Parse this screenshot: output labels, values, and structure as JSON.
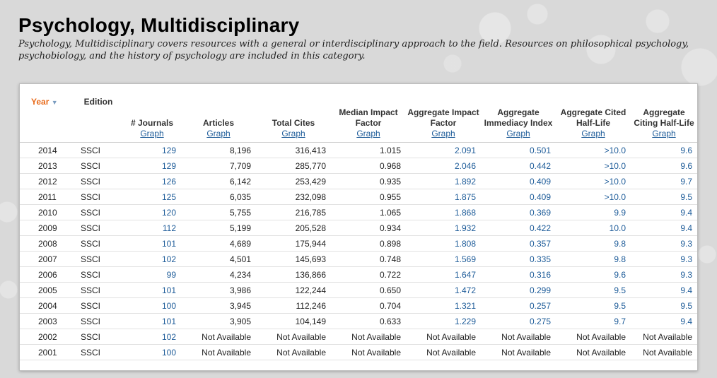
{
  "page": {
    "title": "Psychology, Multidisciplinary",
    "description": "Psychology, Multidisciplinary covers resources with a general or interdisciplinary approach to the field. Resources on philosophical psychology, psychobiology, and the history of psychology are included in this category."
  },
  "table": {
    "headers": {
      "year": "Year",
      "edition": "Edition",
      "journals": "# Journals",
      "articles": "Articles",
      "total_cites": "Total Cites",
      "median_if": "Median Impact Factor",
      "agg_if": "Aggregate Impact Factor",
      "agg_immediacy": "Aggregate Immediacy Index",
      "agg_cited_hl": "Aggregate Cited Half-Life",
      "agg_citing_hl": "Aggregate Citing Half-Life",
      "graph_label": "Graph"
    },
    "sort_icon": "sort-descending-icon",
    "link_color": "#1e5c99",
    "sort_color": "#e86a1a",
    "rows": [
      {
        "year": "2014",
        "edition": "SSCI",
        "journals": "129",
        "articles": "8,196",
        "total_cites": "316,413",
        "median_if": "1.015",
        "agg_if": "2.091",
        "agg_immediacy": "0.501",
        "agg_cited_hl": ">10.0",
        "agg_citing_hl": "9.6"
      },
      {
        "year": "2013",
        "edition": "SSCI",
        "journals": "129",
        "articles": "7,709",
        "total_cites": "285,770",
        "median_if": "0.968",
        "agg_if": "2.046",
        "agg_immediacy": "0.442",
        "agg_cited_hl": ">10.0",
        "agg_citing_hl": "9.6"
      },
      {
        "year": "2012",
        "edition": "SSCI",
        "journals": "126",
        "articles": "6,142",
        "total_cites": "253,429",
        "median_if": "0.935",
        "agg_if": "1.892",
        "agg_immediacy": "0.409",
        "agg_cited_hl": ">10.0",
        "agg_citing_hl": "9.7"
      },
      {
        "year": "2011",
        "edition": "SSCI",
        "journals": "125",
        "articles": "6,035",
        "total_cites": "232,098",
        "median_if": "0.955",
        "agg_if": "1.875",
        "agg_immediacy": "0.409",
        "agg_cited_hl": ">10.0",
        "agg_citing_hl": "9.5"
      },
      {
        "year": "2010",
        "edition": "SSCI",
        "journals": "120",
        "articles": "5,755",
        "total_cites": "216,785",
        "median_if": "1.065",
        "agg_if": "1.868",
        "agg_immediacy": "0.369",
        "agg_cited_hl": "9.9",
        "agg_citing_hl": "9.4"
      },
      {
        "year": "2009",
        "edition": "SSCI",
        "journals": "112",
        "articles": "5,199",
        "total_cites": "205,528",
        "median_if": "0.934",
        "agg_if": "1.932",
        "agg_immediacy": "0.422",
        "agg_cited_hl": "10.0",
        "agg_citing_hl": "9.4"
      },
      {
        "year": "2008",
        "edition": "SSCI",
        "journals": "101",
        "articles": "4,689",
        "total_cites": "175,944",
        "median_if": "0.898",
        "agg_if": "1.808",
        "agg_immediacy": "0.357",
        "agg_cited_hl": "9.8",
        "agg_citing_hl": "9.3"
      },
      {
        "year": "2007",
        "edition": "SSCI",
        "journals": "102",
        "articles": "4,501",
        "total_cites": "145,693",
        "median_if": "0.748",
        "agg_if": "1.569",
        "agg_immediacy": "0.335",
        "agg_cited_hl": "9.8",
        "agg_citing_hl": "9.3"
      },
      {
        "year": "2006",
        "edition": "SSCI",
        "journals": "99",
        "articles": "4,234",
        "total_cites": "136,866",
        "median_if": "0.722",
        "agg_if": "1.647",
        "agg_immediacy": "0.316",
        "agg_cited_hl": "9.6",
        "agg_citing_hl": "9.3"
      },
      {
        "year": "2005",
        "edition": "SSCI",
        "journals": "101",
        "articles": "3,986",
        "total_cites": "122,244",
        "median_if": "0.650",
        "agg_if": "1.472",
        "agg_immediacy": "0.299",
        "agg_cited_hl": "9.5",
        "agg_citing_hl": "9.4"
      },
      {
        "year": "2004",
        "edition": "SSCI",
        "journals": "100",
        "articles": "3,945",
        "total_cites": "112,246",
        "median_if": "0.704",
        "agg_if": "1.321",
        "agg_immediacy": "0.257",
        "agg_cited_hl": "9.5",
        "agg_citing_hl": "9.5"
      },
      {
        "year": "2003",
        "edition": "SSCI",
        "journals": "101",
        "articles": "3,905",
        "total_cites": "104,149",
        "median_if": "0.633",
        "agg_if": "1.229",
        "agg_immediacy": "0.275",
        "agg_cited_hl": "9.7",
        "agg_citing_hl": "9.4"
      },
      {
        "year": "2002",
        "edition": "SSCI",
        "journals": "102",
        "articles": "Not Available",
        "total_cites": "Not Available",
        "median_if": "Not Available",
        "agg_if": "Not Available",
        "agg_immediacy": "Not Available",
        "agg_cited_hl": "Not Available",
        "agg_citing_hl": "Not Available"
      },
      {
        "year": "2001",
        "edition": "SSCI",
        "journals": "100",
        "articles": "Not Available",
        "total_cites": "Not Available",
        "median_if": "Not Available",
        "agg_if": "Not Available",
        "agg_immediacy": "Not Available",
        "agg_cited_hl": "Not Available",
        "agg_citing_hl": "Not Available"
      }
    ]
  }
}
